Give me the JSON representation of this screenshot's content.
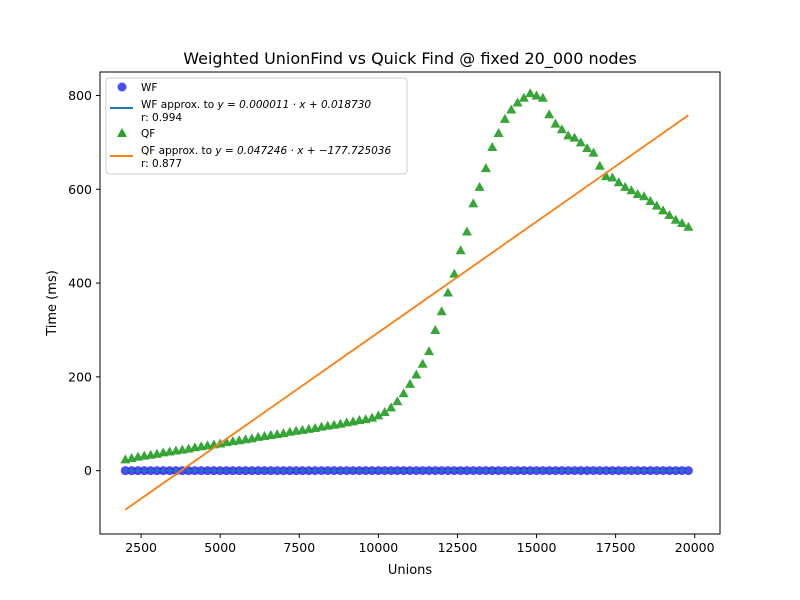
{
  "chart_data": {
    "type": "scatter",
    "title": "Weighted UnionFind vs Quick Find  @ fixed 20_000 nodes",
    "xlabel": "Unions",
    "ylabel": "Time (ms)",
    "xlim": [
      1200,
      20800
    ],
    "ylim": [
      -135,
      850
    ],
    "xticks": [
      2500,
      5000,
      7500,
      10000,
      12500,
      15000,
      17500,
      20000
    ],
    "yticks": [
      0,
      200,
      400,
      600,
      800
    ],
    "colors": {
      "wf": "#1f1ff5",
      "wf_line": "#1f77b4",
      "qf": "#2ca02c",
      "qf_line": "#ff7f0e"
    },
    "legend": {
      "placement": "top-left",
      "entries": [
        {
          "label": "WF"
        },
        {
          "label_prefix": "WF approx. to ",
          "formula": "y = 0.000011 · x + 0.018730",
          "r": "r: 0.994"
        },
        {
          "label": "QF"
        },
        {
          "label_prefix": "QF approx. to ",
          "formula": "y = 0.047246 · x + −177.725036",
          "r": "r: 0.877"
        }
      ]
    },
    "x": [
      2000,
      2200,
      2400,
      2600,
      2800,
      3000,
      3200,
      3400,
      3600,
      3800,
      4000,
      4200,
      4400,
      4600,
      4800,
      5000,
      5200,
      5400,
      5600,
      5800,
      6000,
      6200,
      6400,
      6600,
      6800,
      7000,
      7200,
      7400,
      7600,
      7800,
      8000,
      8200,
      8400,
      8600,
      8800,
      9000,
      9200,
      9400,
      9600,
      9800,
      10000,
      10200,
      10400,
      10600,
      10800,
      11000,
      11200,
      11400,
      11600,
      11800,
      12000,
      12200,
      12400,
      12600,
      12800,
      13000,
      13200,
      13400,
      13600,
      13800,
      14000,
      14200,
      14400,
      14600,
      14800,
      15000,
      15200,
      15400,
      15600,
      15800,
      16000,
      16200,
      16400,
      16600,
      16800,
      17000,
      17200,
      17400,
      17600,
      17800,
      18000,
      18200,
      18400,
      18600,
      18800,
      19000,
      19200,
      19400,
      19600,
      19800
    ],
    "series": [
      {
        "name": "WF",
        "kind": "scatter",
        "marker": "circle",
        "values": [
          0.04,
          0.04,
          0.05,
          0.05,
          0.05,
          0.05,
          0.05,
          0.06,
          0.06,
          0.06,
          0.06,
          0.06,
          0.07,
          0.07,
          0.07,
          0.07,
          0.07,
          0.08,
          0.08,
          0.08,
          0.08,
          0.09,
          0.09,
          0.09,
          0.09,
          0.1,
          0.1,
          0.1,
          0.1,
          0.1,
          0.11,
          0.11,
          0.11,
          0.11,
          0.12,
          0.12,
          0.12,
          0.12,
          0.12,
          0.13,
          0.13,
          0.13,
          0.13,
          0.13,
          0.14,
          0.14,
          0.14,
          0.14,
          0.15,
          0.15,
          0.15,
          0.15,
          0.16,
          0.16,
          0.16,
          0.16,
          0.16,
          0.17,
          0.17,
          0.17,
          0.17,
          0.17,
          0.18,
          0.18,
          0.18,
          0.18,
          0.18,
          0.19,
          0.19,
          0.19,
          0.19,
          0.2,
          0.2,
          0.2,
          0.2,
          0.2,
          0.21,
          0.21,
          0.21,
          0.21,
          0.22,
          0.22,
          0.22,
          0.22,
          0.22,
          0.23,
          0.23,
          0.23,
          0.23,
          0.24
        ]
      },
      {
        "name": "QF",
        "kind": "scatter",
        "marker": "triangle",
        "values": [
          24,
          27,
          30,
          32,
          34,
          36,
          39,
          41,
          43,
          45,
          47,
          50,
          52,
          54,
          56,
          58,
          61,
          63,
          65,
          67,
          69,
          72,
          74,
          76,
          78,
          80,
          83,
          85,
          87,
          89,
          91,
          94,
          96,
          98,
          100,
          103,
          105,
          108,
          110,
          113,
          118,
          125,
          135,
          148,
          165,
          185,
          205,
          228,
          255,
          300,
          340,
          380,
          420,
          470,
          510,
          570,
          605,
          645,
          690,
          720,
          750,
          770,
          785,
          795,
          805,
          800,
          795,
          760,
          740,
          728,
          715,
          710,
          700,
          688,
          678,
          650,
          628,
          625,
          615,
          605,
          598,
          590,
          585,
          575,
          565,
          555,
          545,
          535,
          528,
          520
        ]
      },
      {
        "name": "WF approx.",
        "kind": "line",
        "slope": 1.1e-05,
        "intercept": 0.01873,
        "x_range": [
          2000,
          19800
        ]
      },
      {
        "name": "QF approx.",
        "kind": "line",
        "slope": 0.047246,
        "intercept": -177.725036,
        "x_range": [
          2000,
          19800
        ]
      }
    ]
  }
}
